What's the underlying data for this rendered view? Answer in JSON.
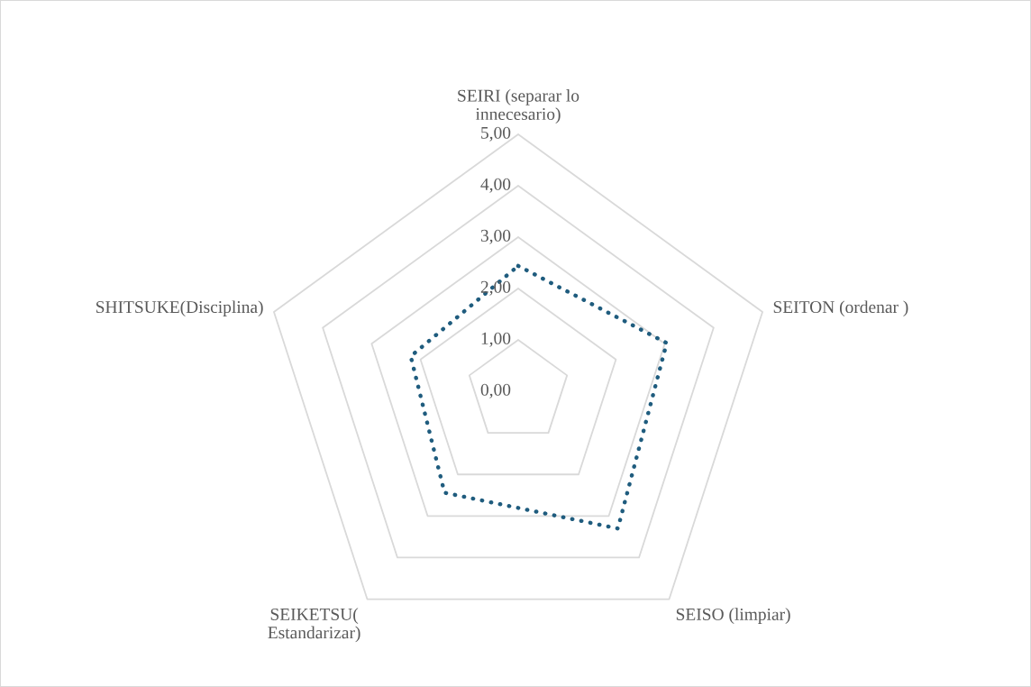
{
  "chart_data": {
    "type": "radar",
    "categories": [
      "SEIRI (separar lo\ninnecesario)",
      "SEITON (ordenar )",
      "SEISO (limpiar)",
      "SEIKETSU(\nEstandarizar)",
      "SHITSUKE(Disciplina)"
    ],
    "series": [
      {
        "color": "#1f5c7e",
        "values": [
          2.44,
          3.04,
          3.3,
          2.44,
          2.2
        ]
      }
    ],
    "ylim": [
      0,
      5
    ],
    "yticks": [
      {
        "value": 0,
        "label": "0,00"
      },
      {
        "value": 1,
        "label": "1,00"
      },
      {
        "value": 2,
        "label": "2,00"
      },
      {
        "value": 3,
        "label": "3,00"
      },
      {
        "value": 4,
        "label": "4,00"
      },
      {
        "value": 5,
        "label": "5,00"
      }
    ],
    "line_style": "dotted",
    "marker": "none",
    "grid": true
  }
}
